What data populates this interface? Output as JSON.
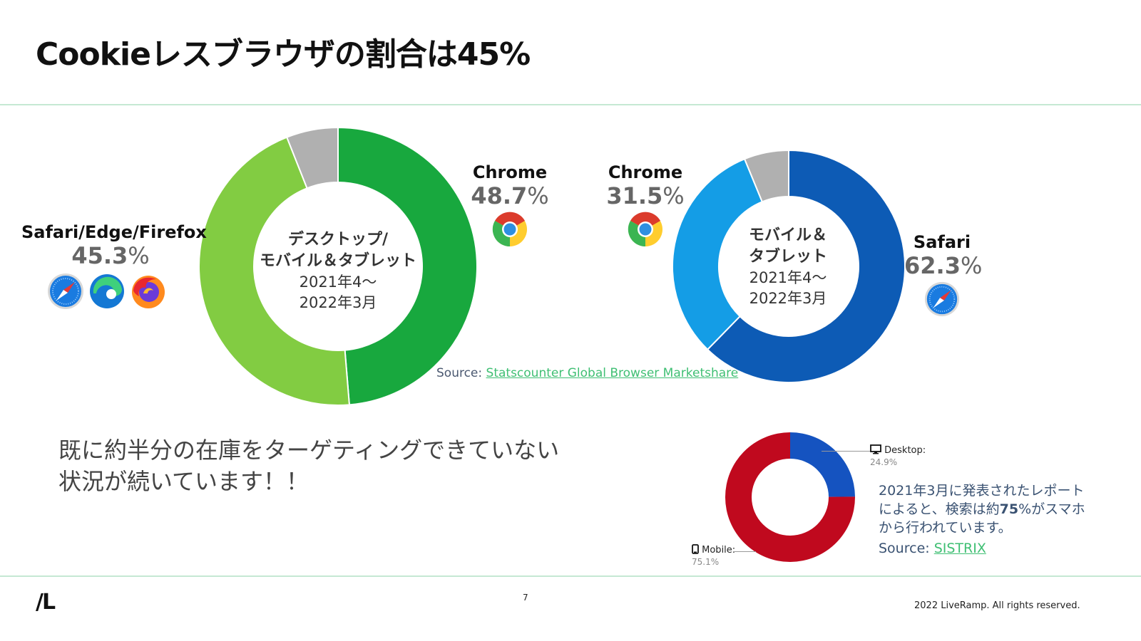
{
  "slide": {
    "title": "Cookieレスブラウザの割合は45%",
    "message_line1": "既に約半分の在庫をターゲティングできていない",
    "message_line2": "状況が続いています！！",
    "source_prefix": "Source: ",
    "source_link": "Statscounter Global Browser Marketshare",
    "report_line1": "2021年3月に発表されたレポート",
    "report_line2_a": "によると、検索は約",
    "report_line2_b": "75",
    "report_line2_c": "%がスマホ",
    "report_line3": "から行われています。",
    "report_source_prefix": "Source: ",
    "report_source_link": "SISTRIX"
  },
  "footer": {
    "logo": "/L",
    "page_number": "7",
    "copyright": "2022 LiveRamp. All rights reserved."
  },
  "left_chart": {
    "center_bold1": "デスクトップ/",
    "center_bold2": "モバイル＆タブレット",
    "center_period1": "2021年4～",
    "center_period2": "2022年3月",
    "label_safari_edge_firefox": "Safari/Edge/Firefox",
    "pct_safari_edge_firefox": "45.3",
    "label_chrome": "Chrome",
    "pct_chrome": "48.7",
    "pct_sign": "%"
  },
  "right_chart": {
    "center_bold1": "モバイル＆",
    "center_bold2": "タブレット",
    "center_period1": "2021年4～",
    "center_period2": "2022年3月",
    "label_chrome": "Chrome",
    "pct_chrome": "31.5",
    "label_safari": "Safari",
    "pct_safari": "62.3",
    "pct_sign": "%"
  },
  "small_chart": {
    "desktop_label": "Desktop:",
    "desktop_value": "24.9%",
    "mobile_label": "Mobile:",
    "mobile_value": "75.1%"
  },
  "colors": {
    "chrome_desktop": "#18a83e",
    "others_desktop": "#82cc42",
    "misc": "#b0b0b0",
    "safari_mobile": "#0d5bb5",
    "chrome_mobile": "#149de6",
    "desktop_small": "#1553c0",
    "mobile_small": "#c0091e",
    "rule": "#c5e8d3",
    "link": "#3fbf73"
  },
  "chart_data": [
    {
      "type": "pie",
      "title": "デスクトップ/モバイル＆タブレット 2021年4～2022年3月",
      "categories": [
        "Chrome",
        "Safari/Edge/Firefox",
        "Other"
      ],
      "values": [
        48.7,
        45.3,
        6.0
      ],
      "colors": [
        "#18a83e",
        "#82cc42",
        "#b0b0b0"
      ],
      "donut": true
    },
    {
      "type": "pie",
      "title": "モバイル＆タブレット 2021年4～2022年3月",
      "categories": [
        "Safari",
        "Chrome",
        "Other"
      ],
      "values": [
        62.3,
        31.5,
        6.2
      ],
      "colors": [
        "#0d5bb5",
        "#149de6",
        "#b0b0b0"
      ],
      "donut": true
    },
    {
      "type": "pie",
      "title": "Search by device (SISTRIX, 2021年3月)",
      "categories": [
        "Desktop",
        "Mobile"
      ],
      "values": [
        24.9,
        75.1
      ],
      "colors": [
        "#1553c0",
        "#c0091e"
      ],
      "donut": true
    }
  ]
}
